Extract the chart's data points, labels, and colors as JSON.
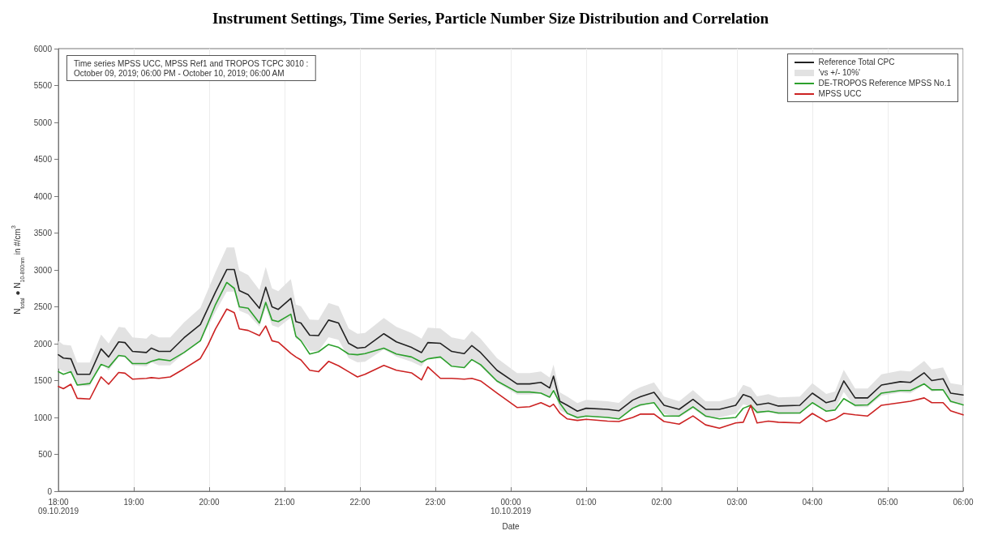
{
  "chart_data": {
    "type": "line",
    "title": "Instrument Settings, Time Series, Particle Number Size Distribution and Correlation",
    "xlabel": "Date",
    "ylabel": "N$_{total}$ ● N$_{10-800nm}$ in #/cm$^{3}$",
    "annotations": [
      "Time series MPSS UCC, MPSS Ref1 and TROPOS TCPC 3010 :\nOctober 09, 2019; 06:00 PM - October 10, 2019; 06:00 AM",
      "'vs +/- 10%'"
    ],
    "x": [
      "2019-10-09T18:00",
      "2019-10-09T18:04",
      "2019-10-09T18:10",
      "2019-10-09T18:15",
      "2019-10-09T18:25",
      "2019-10-09T18:34",
      "2019-10-09T18:40",
      "2019-10-09T18:48",
      "2019-10-09T18:53",
      "2019-10-09T18:59",
      "2019-10-09T19:10",
      "2019-10-09T19:14",
      "2019-10-09T19:20",
      "2019-10-09T19:29",
      "2019-10-09T19:40",
      "2019-10-09T19:53",
      "2019-10-09T19:59",
      "2019-10-09T20:05",
      "2019-10-09T20:14",
      "2019-10-09T20:20",
      "2019-10-09T20:24",
      "2019-10-09T20:31",
      "2019-10-09T20:40",
      "2019-10-09T20:45",
      "2019-10-09T20:50",
      "2019-10-09T20:55",
      "2019-10-09T21:05",
      "2019-10-09T21:09",
      "2019-10-09T21:13",
      "2019-10-09T21:20",
      "2019-10-09T21:27",
      "2019-10-09T21:35",
      "2019-10-09T21:43",
      "2019-10-09T21:51",
      "2019-10-09T21:58",
      "2019-10-09T22:04",
      "2019-10-09T22:19",
      "2019-10-09T22:29",
      "2019-10-09T22:41",
      "2019-10-09T22:49",
      "2019-10-09T22:54",
      "2019-10-09T23:04",
      "2019-10-09T23:13",
      "2019-10-09T23:23",
      "2019-10-09T23:29",
      "2019-10-09T23:36",
      "2019-10-09T23:49",
      "2019-10-10T00:05",
      "2019-10-10T00:15",
      "2019-10-10T00:24",
      "2019-10-10T00:31",
      "2019-10-10T00:34",
      "2019-10-10T00:39",
      "2019-10-10T00:45",
      "2019-10-10T00:53",
      "2019-10-10T01:00",
      "2019-10-10T01:17",
      "2019-10-10T01:26",
      "2019-10-10T01:37",
      "2019-10-10T01:43",
      "2019-10-10T01:54",
      "2019-10-10T02:02",
      "2019-10-10T02:14",
      "2019-10-10T02:25",
      "2019-10-10T02:35",
      "2019-10-10T02:46",
      "2019-10-10T02:59",
      "2019-10-10T03:05",
      "2019-10-10T03:11",
      "2019-10-10T03:16",
      "2019-10-10T03:25",
      "2019-10-10T03:33",
      "2019-10-10T03:50",
      "2019-10-10T04:00",
      "2019-10-10T04:11",
      "2019-10-10T04:18",
      "2019-10-10T04:25",
      "2019-10-10T04:34",
      "2019-10-10T04:44",
      "2019-10-10T04:55",
      "2019-10-10T05:10",
      "2019-10-10T05:18",
      "2019-10-10T05:29",
      "2019-10-10T05:35",
      "2019-10-10T05:44",
      "2019-10-10T05:50",
      "2019-10-10T06:00"
    ],
    "xlim": [
      "2019-10-09T18:00",
      "2019-10-10T06:00"
    ],
    "xticks": [
      {
        "value": "2019-10-09T18:00",
        "label": "18:00\n09.10.2019"
      },
      {
        "value": "2019-10-09T19:00",
        "label": "19:00"
      },
      {
        "value": "2019-10-09T20:00",
        "label": "20:00"
      },
      {
        "value": "2019-10-09T21:00",
        "label": "21:00"
      },
      {
        "value": "2019-10-09T22:00",
        "label": "22:00"
      },
      {
        "value": "2019-10-09T23:00",
        "label": "23:00"
      },
      {
        "value": "2019-10-10T00:00",
        "label": "00:00\n10.10.2019"
      },
      {
        "value": "2019-10-10T01:00",
        "label": "01:00"
      },
      {
        "value": "2019-10-10T02:00",
        "label": "02:00"
      },
      {
        "value": "2019-10-10T03:00",
        "label": "03:00"
      },
      {
        "value": "2019-10-10T04:00",
        "label": "04:00"
      },
      {
        "value": "2019-10-10T05:00",
        "label": "05:00"
      },
      {
        "value": "2019-10-10T06:00",
        "label": "06:00"
      }
    ],
    "ylim": [
      0,
      6000
    ],
    "yticks": [
      0,
      500,
      1000,
      1500,
      2000,
      2500,
      3000,
      3500,
      4000,
      4500,
      5000,
      5500,
      6000
    ],
    "grid": "x",
    "legend": "top right",
    "marker": "none",
    "series": [
      {
        "name": "Reference Total CPC",
        "color": "#222222",
        "values": [
          1850,
          1805,
          1795,
          1585,
          1585,
          1930,
          1820,
          2025,
          2015,
          1895,
          1880,
          1940,
          1895,
          1895,
          2080,
          2260,
          2480,
          2700,
          3005,
          3005,
          2720,
          2665,
          2480,
          2765,
          2500,
          2465,
          2615,
          2300,
          2280,
          2115,
          2110,
          2320,
          2280,
          2005,
          1940,
          1950,
          2135,
          2025,
          1950,
          1880,
          2015,
          2005,
          1895,
          1865,
          1975,
          1880,
          1640,
          1455,
          1455,
          1475,
          1400,
          1560,
          1220,
          1165,
          1085,
          1125,
          1110,
          1090,
          1235,
          1280,
          1340,
          1165,
          1110,
          1245,
          1110,
          1110,
          1165,
          1310,
          1275,
          1170,
          1195,
          1155,
          1165,
          1330,
          1200,
          1230,
          1495,
          1265,
          1265,
          1440,
          1485,
          1475,
          1605,
          1500,
          1525,
          1330,
          1305
        ],
        "upper": [
          2035,
          1986,
          1975,
          1744,
          1744,
          2123,
          2002,
          2228,
          2217,
          2085,
          2068,
          2134,
          2085,
          2085,
          2288,
          2486,
          2728,
          2970,
          3306,
          3306,
          2992,
          2932,
          2728,
          3042,
          2750,
          2712,
          2877,
          2530,
          2508,
          2327,
          2321,
          2552,
          2508,
          2206,
          2134,
          2145,
          2349,
          2228,
          2145,
          2068,
          2217,
          2206,
          2085,
          2052,
          2173,
          2068,
          1804,
          1601,
          1601,
          1623,
          1540,
          1716,
          1342,
          1282,
          1194,
          1238,
          1221,
          1199,
          1359,
          1408,
          1474,
          1282,
          1221,
          1370,
          1221,
          1221,
          1282,
          1441,
          1403,
          1287,
          1315,
          1271,
          1282,
          1463,
          1320,
          1353,
          1645,
          1392,
          1392,
          1584,
          1634,
          1623,
          1766,
          1650,
          1678,
          1463,
          1436
        ],
        "lower": [
          1665,
          1625,
          1616,
          1427,
          1427,
          1737,
          1638,
          1823,
          1814,
          1706,
          1692,
          1746,
          1706,
          1706,
          1872,
          2034,
          2232,
          2430,
          2705,
          2705,
          2448,
          2399,
          2232,
          2489,
          2250,
          2219,
          2354,
          2070,
          2052,
          1904,
          1899,
          2088,
          2052,
          1805,
          1746,
          1755,
          1922,
          1823,
          1755,
          1692,
          1814,
          1805,
          1706,
          1679,
          1778,
          1692,
          1476,
          1310,
          1310,
          1328,
          1260,
          1404,
          1098,
          1049,
          977,
          1013,
          999,
          981,
          1112,
          1152,
          1206,
          1049,
          999,
          1121,
          999,
          999,
          1049,
          1179,
          1148,
          1053,
          1076,
          1040,
          1049,
          1197,
          1080,
          1107,
          1346,
          1139,
          1139,
          1296,
          1337,
          1328,
          1445,
          1350,
          1373,
          1197,
          1175
        ]
      },
      {
        "name": "DE-TROPOS Reference MPSS No.1",
        "color": "#2ca02c",
        "values": [
          1620,
          1585,
          1620,
          1440,
          1460,
          1720,
          1680,
          1840,
          1830,
          1730,
          1730,
          1760,
          1790,
          1770,
          1880,
          2040,
          2280,
          2530,
          2830,
          2750,
          2500,
          2480,
          2280,
          2560,
          2320,
          2300,
          2400,
          2100,
          2040,
          1860,
          1890,
          1990,
          1950,
          1860,
          1850,
          1865,
          1940,
          1860,
          1820,
          1750,
          1795,
          1820,
          1695,
          1675,
          1785,
          1715,
          1495,
          1345,
          1345,
          1330,
          1275,
          1365,
          1195,
          1055,
          1000,
          1020,
          1000,
          980,
          1125,
          1170,
          1200,
          1020,
          1020,
          1145,
          1020,
          980,
          1000,
          1125,
          1165,
          1070,
          1085,
          1060,
          1060,
          1200,
          1085,
          1100,
          1255,
          1165,
          1170,
          1330,
          1365,
          1365,
          1455,
          1375,
          1375,
          1220,
          1170
        ]
      },
      {
        "name": "MPSS UCC",
        "color": "#cc2222",
        "values": [
          1420,
          1390,
          1450,
          1260,
          1250,
          1550,
          1450,
          1610,
          1600,
          1520,
          1530,
          1540,
          1530,
          1550,
          1660,
          1800,
          1980,
          2200,
          2470,
          2420,
          2200,
          2180,
          2110,
          2240,
          2040,
          2020,
          1870,
          1820,
          1780,
          1640,
          1620,
          1760,
          1700,
          1620,
          1550,
          1585,
          1705,
          1640,
          1605,
          1510,
          1685,
          1530,
          1530,
          1520,
          1530,
          1495,
          1330,
          1135,
          1145,
          1200,
          1145,
          1180,
          1060,
          980,
          960,
          975,
          950,
          945,
          1000,
          1045,
          1045,
          945,
          910,
          1020,
          900,
          855,
          925,
          935,
          1165,
          925,
          950,
          935,
          925,
          1055,
          945,
          980,
          1055,
          1035,
          1020,
          1165,
          1200,
          1220,
          1265,
          1200,
          1200,
          1090,
          1035
        ]
      }
    ]
  }
}
